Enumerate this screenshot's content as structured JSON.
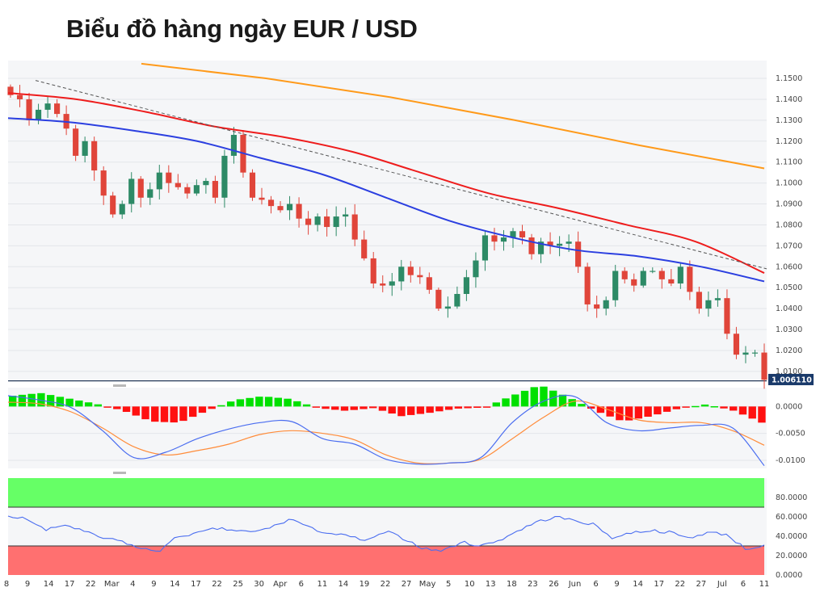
{
  "title": "Biểu đồ hàng ngày EUR / USD",
  "chart_data": [
    {
      "type": "candlestick",
      "panel": "price",
      "ylim": [
        1.0061,
        1.1585
      ],
      "yticks": [
        "1.1500",
        "1.1400",
        "1.1300",
        "1.1200",
        "1.1100",
        "1.1000",
        "1.0900",
        "1.0800",
        "1.0700",
        "1.0600",
        "1.0500",
        "1.0400",
        "1.0300",
        "1.0200",
        "1.0100"
      ],
      "last_price_label": "1.006110",
      "last_price": 1.00611,
      "x_labels": [
        "8",
        "9",
        "14",
        "17",
        "22",
        "Mar",
        "4",
        "9",
        "14",
        "17",
        "22",
        "25",
        "30",
        "Apr",
        "6",
        "11",
        "14",
        "19",
        "22",
        "27",
        "May",
        "5",
        "10",
        "13",
        "18",
        "23",
        "26",
        "Jun",
        "6",
        "9",
        "14",
        "17",
        "22",
        "27",
        "Jul",
        "6",
        "11"
      ],
      "candles_close": [
        1.142,
        1.14,
        1.13,
        1.135,
        1.138,
        1.133,
        1.126,
        1.113,
        1.12,
        1.106,
        1.094,
        1.085,
        1.09,
        1.102,
        1.093,
        1.097,
        1.105,
        1.1,
        1.098,
        1.095,
        1.099,
        1.101,
        1.093,
        1.113,
        1.123,
        1.105,
        1.093,
        1.092,
        1.089,
        1.087,
        1.09,
        1.083,
        1.08,
        1.084,
        1.079,
        1.084,
        1.085,
        1.073,
        1.064,
        1.052,
        1.051,
        1.053,
        1.06,
        1.056,
        1.055,
        1.049,
        1.04,
        1.041,
        1.047,
        1.055,
        1.063,
        1.075,
        1.072,
        1.074,
        1.077,
        1.074,
        1.066,
        1.072,
        1.07,
        1.071,
        1.072,
        1.06,
        1.042,
        1.04,
        1.044,
        1.058,
        1.054,
        1.051,
        1.058,
        1.058,
        1.054,
        1.052,
        1.06,
        1.048,
        1.04,
        1.044,
        1.045,
        1.028,
        1.018,
        1.019,
        1.019,
        1.006
      ],
      "ma_blue": [
        1.131,
        1.129,
        1.125,
        1.12,
        1.112,
        1.104,
        1.093,
        1.082,
        1.074,
        1.068,
        1.065,
        1.06,
        1.053
      ],
      "ma_red": [
        1.143,
        1.14,
        1.134,
        1.127,
        1.122,
        1.115,
        1.105,
        1.095,
        1.088,
        1.08,
        1.072,
        1.057
      ],
      "ma_orange": [
        1.157,
        1.15,
        1.141,
        1.13,
        1.118,
        1.107
      ],
      "trendline": [
        [
          0,
          1.149
        ],
        [
          1,
          1.059
        ]
      ],
      "series": [
        {
          "name": "",
          "color": "#2b3fe0"
        },
        {
          "name": "",
          "color": "#ee1c1c"
        },
        {
          "name": "",
          "color": "#ff9a1a"
        }
      ]
    },
    {
      "type": "histogram+lines",
      "panel": "macd",
      "ylim": [
        -0.0115,
        0.0035
      ],
      "yticks": [
        "0.0000",
        "-0.0050",
        "-0.0100"
      ],
      "colors": {
        "positive": "#00e000",
        "negative": "#ff1010",
        "macd": "#4a6df0",
        "signal": "#ff8c3a"
      }
    },
    {
      "type": "line",
      "panel": "rsi",
      "ylim": [
        0,
        100
      ],
      "yticks": [
        "80.0000",
        "60.0000",
        "40.0000",
        "20.0000",
        "0.0000"
      ],
      "overbought": 70,
      "oversold": 30,
      "colors": {
        "line": "#4a6df0",
        "overbought_zone": "#66ff66",
        "oversold_zone": "#ff7070"
      }
    }
  ]
}
